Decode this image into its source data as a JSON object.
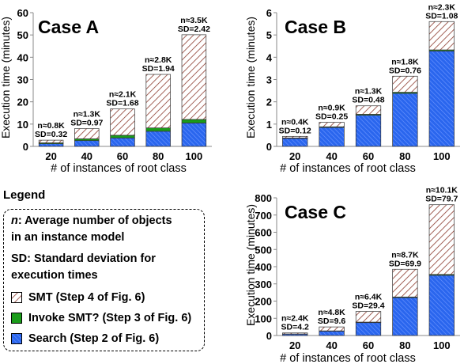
{
  "legend": {
    "title": "Legend",
    "n_key": "n",
    "n_line1": ": Average number of objects",
    "n_line2": "in an instance model",
    "sd_line1": "SD: Standard deviation for",
    "sd_line2": "execution times",
    "items": [
      {
        "label": "SMT (Step 4 of Fig. 6)",
        "pattern": "hatch-smt"
      },
      {
        "label": "Invoke SMT? (Step 3 of Fig. 6)",
        "pattern": "green"
      },
      {
        "label": "Search (Step 2 of Fig. 6)",
        "pattern": "hatch-search"
      }
    ]
  },
  "colors": {
    "smt_line": "#8b3a2e",
    "invoke": "#1a9c1a",
    "search": "#2a66ee",
    "search_line": "#1a3fb0"
  },
  "chart_data": [
    {
      "type": "bar",
      "stacked": true,
      "title": "Case A",
      "xlabel": "# of instances of root class",
      "ylabel": "Execution time (minutes)",
      "categories": [
        "20",
        "40",
        "60",
        "80",
        "100"
      ],
      "ylim": [
        0,
        60
      ],
      "yticks": [
        0,
        10,
        20,
        30,
        40,
        50,
        60
      ],
      "series": [
        {
          "name": "Search (Step 2 of Fig. 6)",
          "values": [
            1.2,
            2.6,
            3.8,
            6.8,
            10.5
          ]
        },
        {
          "name": "Invoke SMT? (Step 3 of Fig. 6)",
          "values": [
            0.4,
            0.8,
            1.2,
            1.5,
            1.6
          ]
        },
        {
          "name": "SMT (Step 4 of Fig. 6)",
          "values": [
            1.2,
            4.6,
            11.8,
            24.0,
            38.0
          ]
        }
      ],
      "annotations": [
        {
          "n": "n≈0.8K",
          "sd": "SD=0.32"
        },
        {
          "n": "n≈1.3K",
          "sd": "SD=0.97"
        },
        {
          "n": "n≈2.1K",
          "sd": "SD=1.68"
        },
        {
          "n": "n≈2.8K",
          "sd": "SD=1.94"
        },
        {
          "n": "n≈3.5K",
          "sd": "SD=2.42"
        }
      ]
    },
    {
      "type": "bar",
      "stacked": true,
      "title": "Case B",
      "xlabel": "# of instances of root class",
      "ylabel": "Execution time (minutes)",
      "categories": [
        "20",
        "40",
        "60",
        "80",
        "100"
      ],
      "ylim": [
        0,
        6
      ],
      "yticks": [
        0,
        1,
        2,
        3,
        4,
        5,
        6
      ],
      "series": [
        {
          "name": "Search (Step 2 of Fig. 6)",
          "values": [
            0.36,
            0.85,
            1.4,
            2.38,
            4.28
          ]
        },
        {
          "name": "Invoke SMT? (Step 3 of Fig. 6)",
          "values": [
            0.02,
            0.03,
            0.04,
            0.05,
            0.05
          ]
        },
        {
          "name": "SMT (Step 4 of Fig. 6)",
          "values": [
            0.07,
            0.2,
            0.38,
            0.72,
            1.27
          ]
        }
      ],
      "annotations": [
        {
          "n": "n≈0.4K",
          "sd": "SD=0.12"
        },
        {
          "n": "n≈0.9K",
          "sd": "SD=0.25"
        },
        {
          "n": "n≈1.3K",
          "sd": "SD=0.48"
        },
        {
          "n": "n≈1.8K",
          "sd": "SD=0.76"
        },
        {
          "n": "n≈2.3K",
          "sd": "SD=1.08"
        }
      ]
    },
    {
      "type": "bar",
      "stacked": true,
      "title": "Case C",
      "xlabel": "# of instances of root class",
      "ylabel": "Execution time (minutes)",
      "categories": [
        "20",
        "40",
        "60",
        "80",
        "100"
      ],
      "ylim": [
        0,
        800
      ],
      "yticks": [
        0,
        100,
        200,
        300,
        400,
        500,
        600,
        700,
        800
      ],
      "series": [
        {
          "name": "Search (Step 2 of Fig. 6)",
          "values": [
            8,
            25,
            75,
            220,
            350
          ]
        },
        {
          "name": "Invoke SMT? (Step 3 of Fig. 6)",
          "values": [
            1,
            2,
            3,
            4,
            5
          ]
        },
        {
          "name": "SMT (Step 4 of Fig. 6)",
          "values": [
            6,
            23,
            62,
            161,
            405
          ]
        }
      ],
      "annotations": [
        {
          "n": "n≈2.4K",
          "sd": "SD=4.2"
        },
        {
          "n": "n≈4.8K",
          "sd": "SD=9.6"
        },
        {
          "n": "n≈6.4K",
          "sd": "SD=29.4"
        },
        {
          "n": "n≈8.7K",
          "sd": "SD=69.9"
        },
        {
          "n": "n≈10.1K",
          "sd": "SD=79.7"
        }
      ]
    }
  ]
}
